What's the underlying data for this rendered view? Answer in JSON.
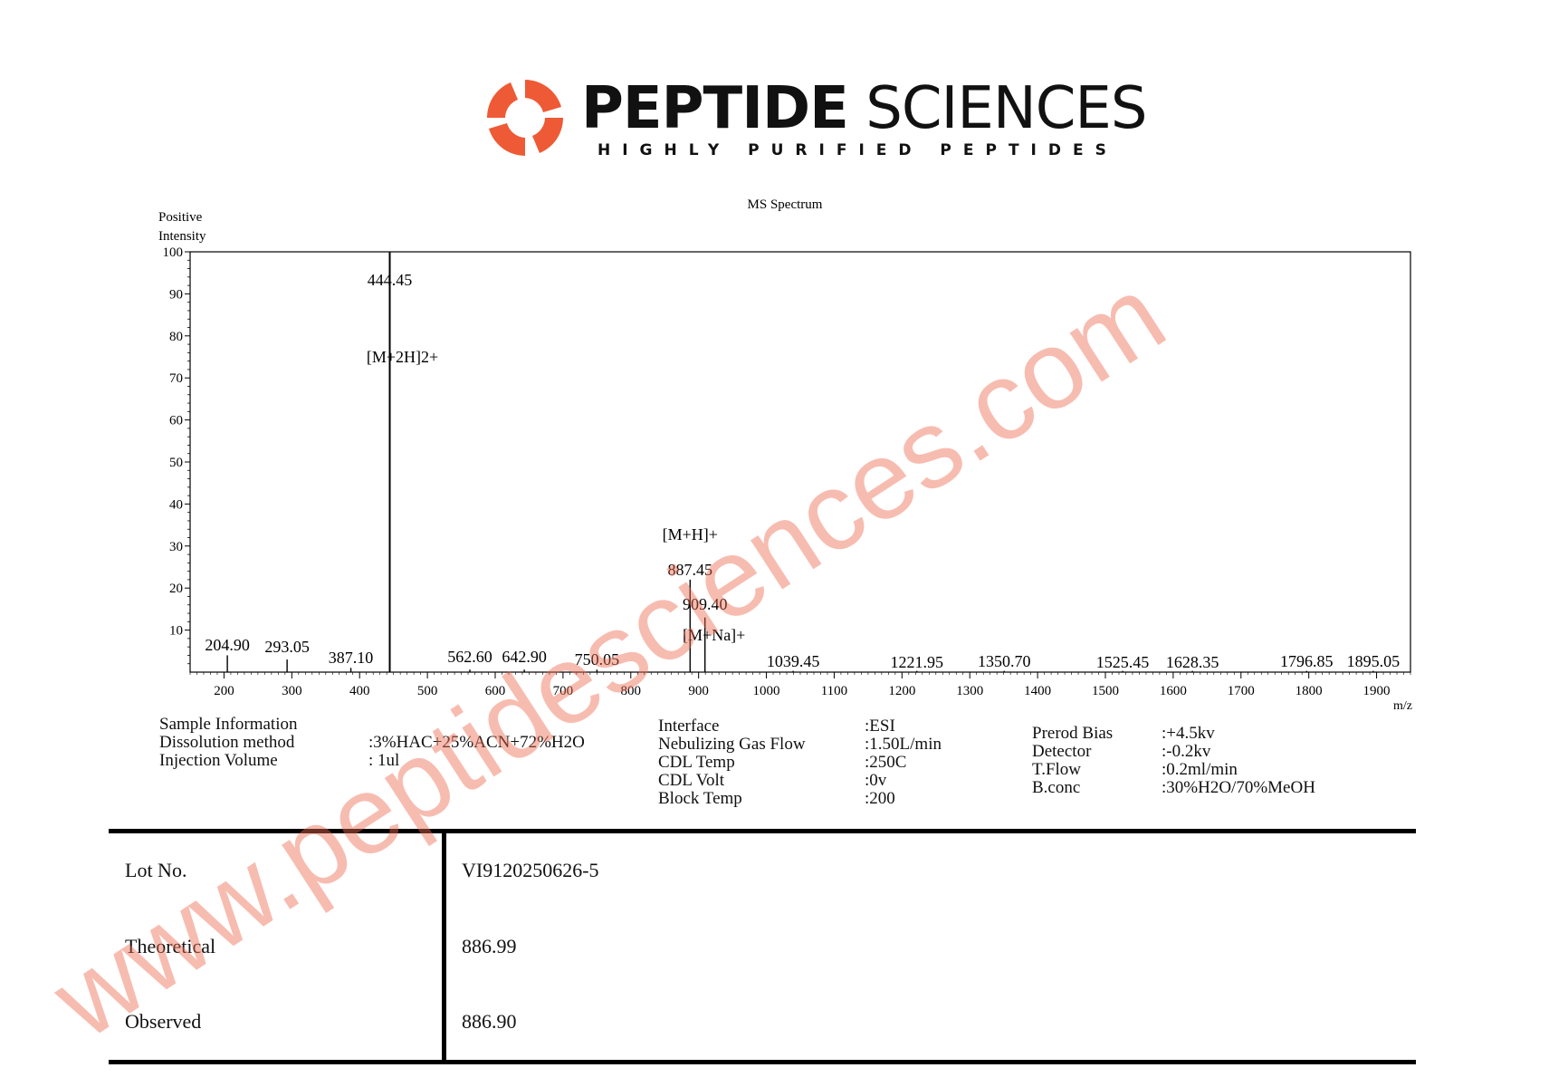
{
  "logo": {
    "brand_bold": "PEPTIDE",
    "brand_light": "SCIENCES",
    "tagline": "HIGHLY PURIFIED PEPTIDES",
    "accent_color": "#ee5a35"
  },
  "chart_data": {
    "type": "line",
    "title": "MS Spectrum",
    "ylabel_line1": "Positive",
    "ylabel_line2": "Intensity",
    "xlabel": "m/z",
    "xlim": [
      150,
      1950
    ],
    "ylim": [
      0,
      100
    ],
    "yticks": [
      "10",
      "20",
      "30",
      "40",
      "50",
      "60",
      "70",
      "80",
      "90",
      "100"
    ],
    "xticks": [
      "200",
      "300",
      "400",
      "500",
      "600",
      "700",
      "800",
      "900",
      "1000",
      "1100",
      "1200",
      "1300",
      "1400",
      "1500",
      "1600",
      "1700",
      "1800",
      "1900"
    ],
    "peaks": [
      {
        "mz": 204.9,
        "intensity": 4,
        "label": "204.90"
      },
      {
        "mz": 293.05,
        "intensity": 3,
        "label": "293.05"
      },
      {
        "mz": 387.1,
        "intensity": 1,
        "label": "387.10"
      },
      {
        "mz": 444.45,
        "intensity": 100,
        "label": "444.45"
      },
      {
        "mz": 562.6,
        "intensity": 0.6,
        "label": "562.60"
      },
      {
        "mz": 642.9,
        "intensity": 0.6,
        "label": "642.90"
      },
      {
        "mz": 750.05,
        "intensity": 0.6,
        "label": "750.05"
      },
      {
        "mz": 887.45,
        "intensity": 22,
        "label": "887.45"
      },
      {
        "mz": 909.4,
        "intensity": 13,
        "label": "909.40"
      },
      {
        "mz": 1039.45,
        "intensity": 0.3,
        "label": "1039.45"
      },
      {
        "mz": 1221.95,
        "intensity": 0.3,
        "label": "1221.95"
      },
      {
        "mz": 1350.7,
        "intensity": 0.3,
        "label": "1350.70"
      },
      {
        "mz": 1525.45,
        "intensity": 0.3,
        "label": "1525.45"
      },
      {
        "mz": 1628.35,
        "intensity": 0.3,
        "label": "1628.35"
      },
      {
        "mz": 1796.85,
        "intensity": 0.3,
        "label": "1796.85"
      },
      {
        "mz": 1895.05,
        "intensity": 0.3,
        "label": "1895.05"
      }
    ],
    "annotations": [
      "[M+2H]2+",
      "[M+H]+",
      "[M+Na]+"
    ]
  },
  "sample_info": {
    "heading": "Sample Information",
    "rows": [
      {
        "label": "Dissolution method",
        "value": ":3%HAC+25%ACN+72%H2O"
      },
      {
        "label": "Injection Volume",
        "value": ": 1ul"
      }
    ]
  },
  "instrument": {
    "col1": [
      {
        "label": "Interface",
        "value": ":ESI"
      },
      {
        "label": "Nebulizing Gas Flow",
        "value": ":1.50L/min"
      },
      {
        "label": "CDL Temp",
        "value": ":250C"
      },
      {
        "label": "CDL Volt",
        "value": ":0v"
      },
      {
        "label": "Block Temp",
        "value": ":200"
      }
    ],
    "col2": [
      {
        "label": "Prerod Bias",
        "value": ":+4.5kv"
      },
      {
        "label": "Detector",
        "value": ":-0.2kv"
      },
      {
        "label": "T.Flow",
        "value": ":0.2ml/min"
      },
      {
        "label": "B.conc",
        "value": ":30%H2O/70%MeOH"
      }
    ]
  },
  "results": {
    "lot_label": "Lot No.",
    "lot_value": "VI9120250626-5",
    "theoretical_label": "Theoretical",
    "theoretical_value": "886.99",
    "observed_label": "Observed",
    "observed_value": "886.90"
  },
  "watermark": {
    "text": "www.peptidesciences.com",
    "color": "#ee6a50"
  }
}
